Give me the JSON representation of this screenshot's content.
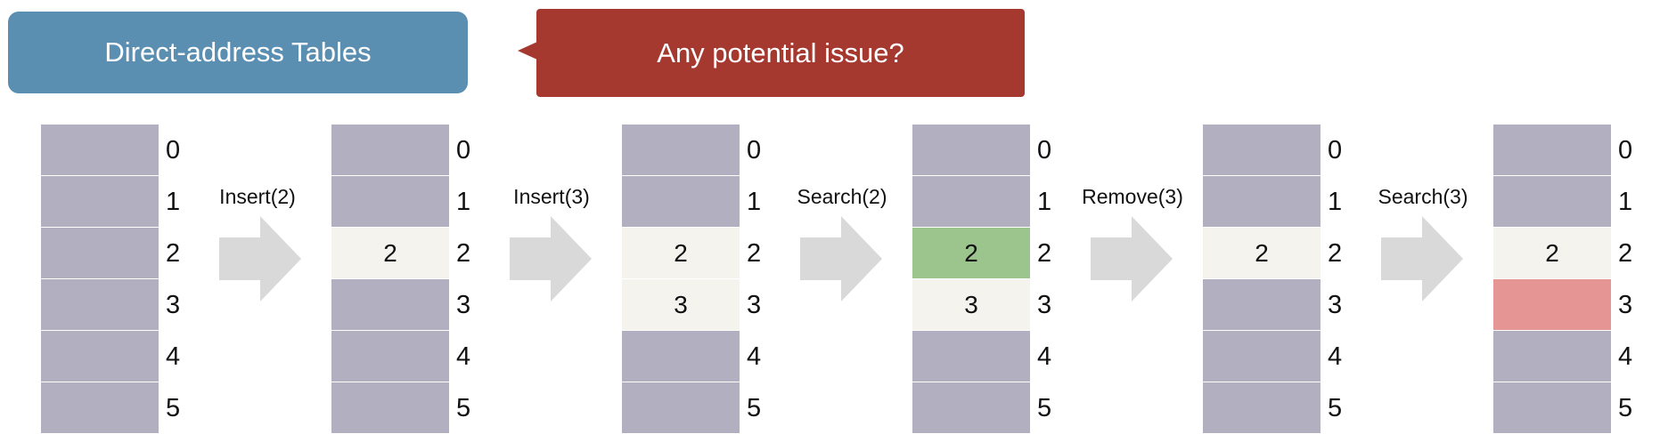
{
  "header": {
    "title": "Direct-address Tables",
    "callout": "Any potential issue?"
  },
  "colors": {
    "title_bg": "#5a8fb2",
    "callout_bg": "#a6392f",
    "empty_slot": "#b1afc0",
    "filled_slot": "#f4f3ee",
    "found_slot": "#9bc58c",
    "error_slot": "#e49594",
    "arrow": "#d9d9d9"
  },
  "indices": [
    "0",
    "1",
    "2",
    "3",
    "4",
    "5"
  ],
  "tables": [
    {
      "cells": [
        {
          "value": "",
          "state": "empty"
        },
        {
          "value": "",
          "state": "empty"
        },
        {
          "value": "",
          "state": "empty"
        },
        {
          "value": "",
          "state": "empty"
        },
        {
          "value": "",
          "state": "empty"
        },
        {
          "value": "",
          "state": "empty"
        }
      ]
    },
    {
      "cells": [
        {
          "value": "",
          "state": "empty"
        },
        {
          "value": "",
          "state": "empty"
        },
        {
          "value": "2",
          "state": "filled"
        },
        {
          "value": "",
          "state": "empty"
        },
        {
          "value": "",
          "state": "empty"
        },
        {
          "value": "",
          "state": "empty"
        }
      ]
    },
    {
      "cells": [
        {
          "value": "",
          "state": "empty"
        },
        {
          "value": "",
          "state": "empty"
        },
        {
          "value": "2",
          "state": "filled"
        },
        {
          "value": "3",
          "state": "filled"
        },
        {
          "value": "",
          "state": "empty"
        },
        {
          "value": "",
          "state": "empty"
        }
      ]
    },
    {
      "cells": [
        {
          "value": "",
          "state": "empty"
        },
        {
          "value": "",
          "state": "empty"
        },
        {
          "value": "2",
          "state": "found"
        },
        {
          "value": "3",
          "state": "filled"
        },
        {
          "value": "",
          "state": "empty"
        },
        {
          "value": "",
          "state": "empty"
        }
      ]
    },
    {
      "cells": [
        {
          "value": "",
          "state": "empty"
        },
        {
          "value": "",
          "state": "empty"
        },
        {
          "value": "2",
          "state": "filled"
        },
        {
          "value": "",
          "state": "empty"
        },
        {
          "value": "",
          "state": "empty"
        },
        {
          "value": "",
          "state": "empty"
        }
      ]
    },
    {
      "cells": [
        {
          "value": "",
          "state": "empty"
        },
        {
          "value": "",
          "state": "empty"
        },
        {
          "value": "2",
          "state": "filled"
        },
        {
          "value": "",
          "state": "error"
        },
        {
          "value": "",
          "state": "empty"
        },
        {
          "value": "",
          "state": "empty"
        }
      ]
    }
  ],
  "operations": [
    "Insert(2)",
    "Insert(3)",
    "Search(2)",
    "Remove(3)",
    "Search(3)"
  ]
}
